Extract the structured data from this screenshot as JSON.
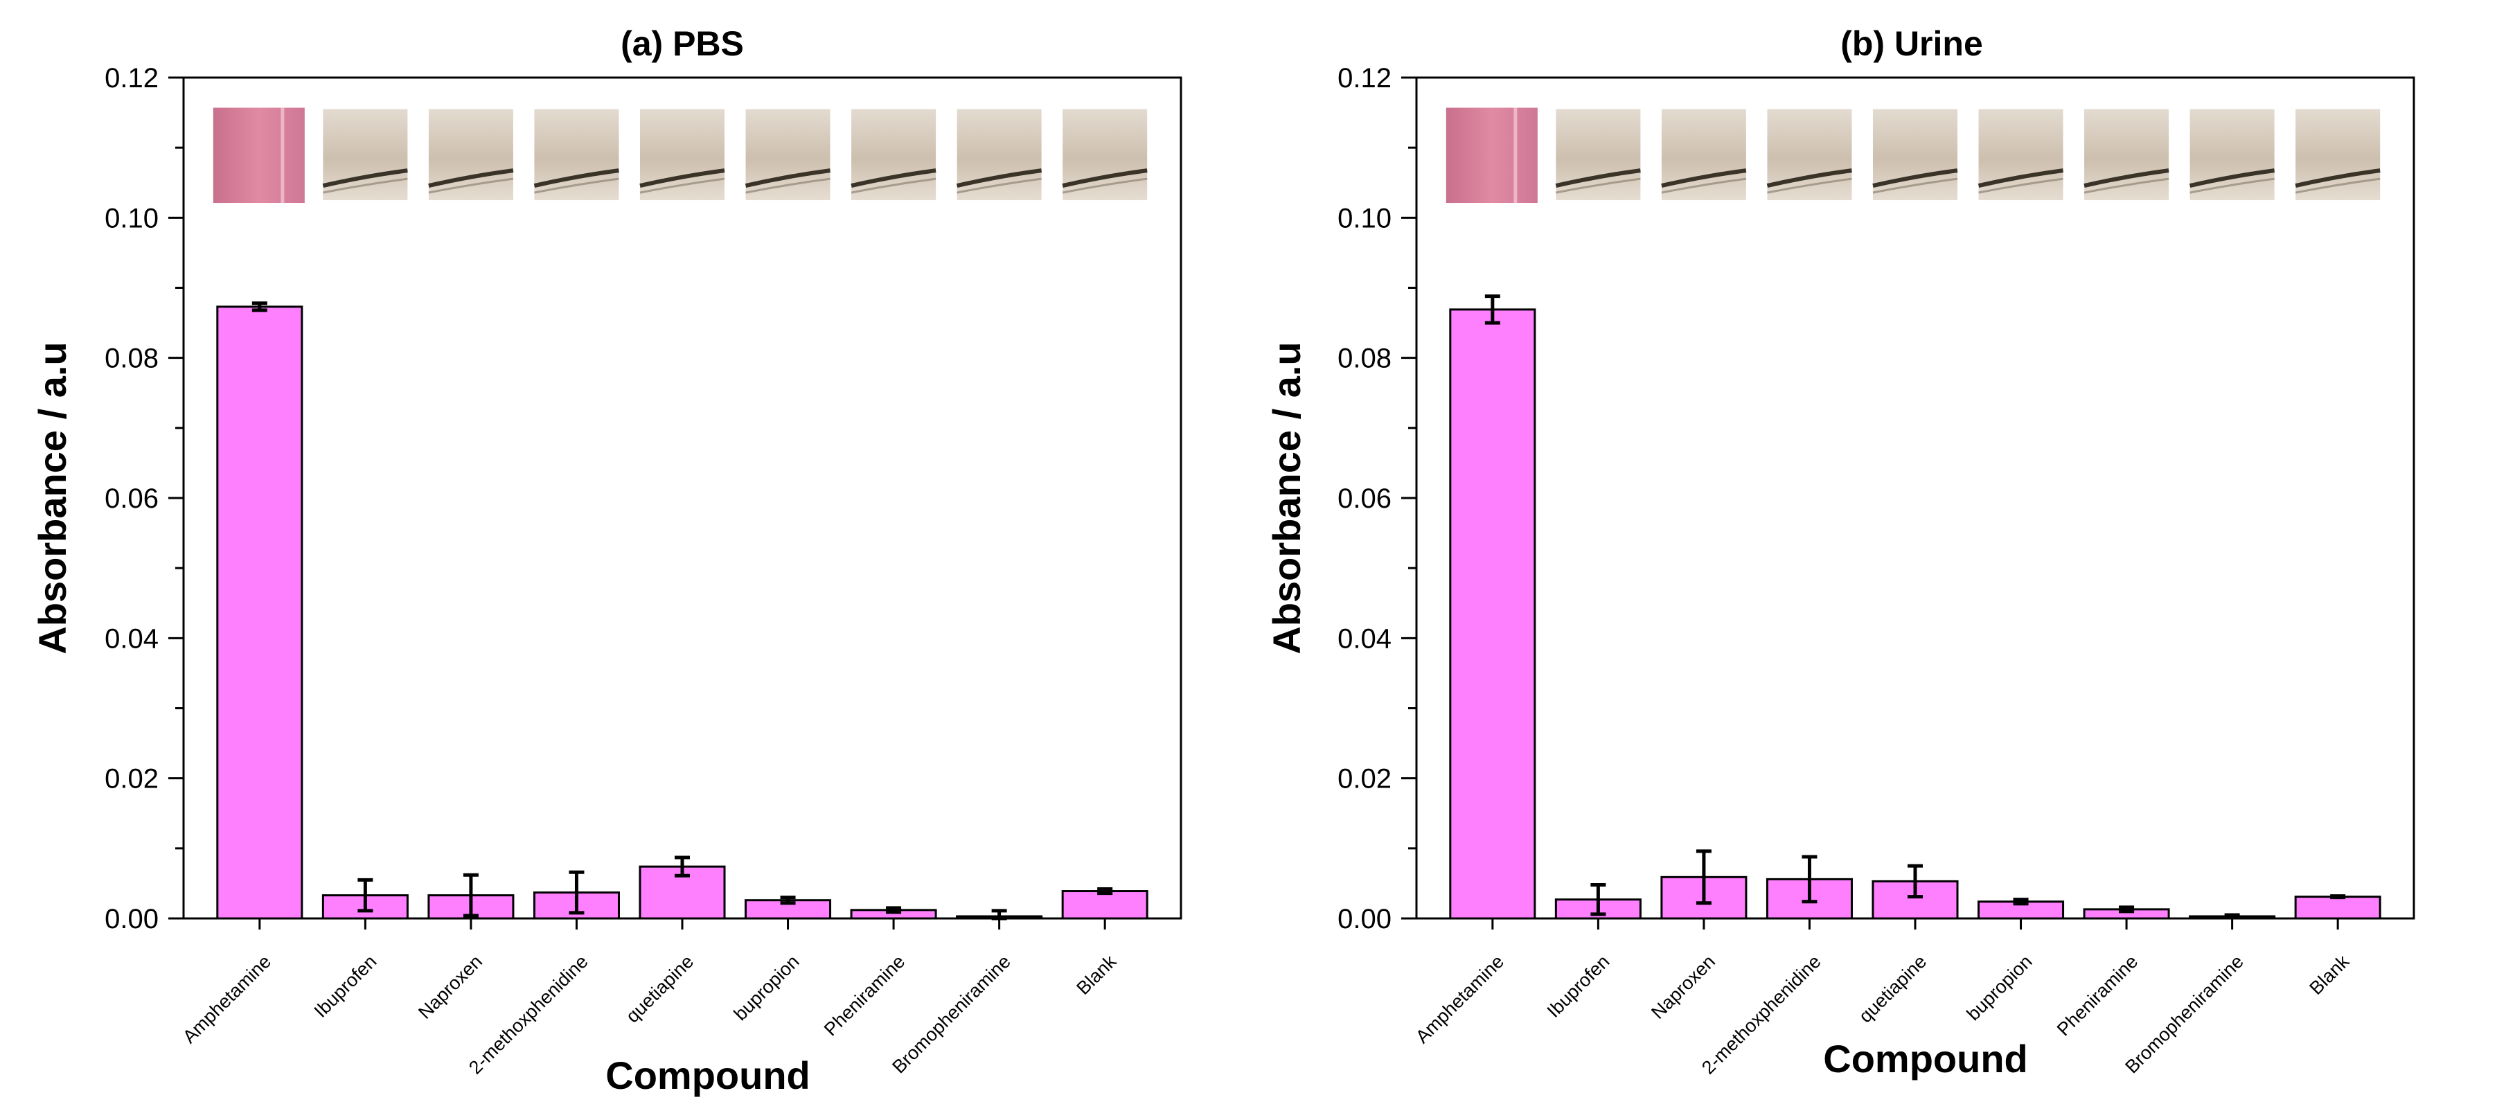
{
  "colors": {
    "bar_fill": "#ff80ff",
    "swatch_positive": "#d47a96",
    "swatch_negative": "#d8cfc3",
    "swatch_line": "#3a3328"
  },
  "chart_data": [
    {
      "type": "bar",
      "title": "(a) PBS",
      "xlabel": "Compound",
      "ylabel": "Absorbance / a.u",
      "ylim": [
        0,
        0.12
      ],
      "yticks": [
        "0.00",
        "0.02",
        "0.04",
        "0.06",
        "0.08",
        "0.10",
        "0.12"
      ],
      "categories": [
        "Amphetamine",
        "Ibuprofen",
        "Naproxen",
        "2-methoxphenidine",
        "quetiapine",
        "bupropion",
        "Pheniramine",
        "Bromopheniramine",
        "Blank"
      ],
      "values": [
        0.0873,
        0.0033,
        0.0033,
        0.0037,
        0.0074,
        0.0026,
        0.0012,
        0.0003,
        0.0039
      ],
      "errors": [
        0.0005,
        0.0022,
        0.0029,
        0.0029,
        0.0013,
        0.0004,
        0.0003,
        0.0008,
        0.0003
      ],
      "swatches": [
        "positive",
        "negative",
        "negative",
        "negative",
        "negative",
        "negative",
        "negative",
        "negative",
        "negative"
      ]
    },
    {
      "type": "bar",
      "title": "(b) Urine",
      "xlabel": "Compound",
      "ylabel": "Absorbance / a.u",
      "ylim": [
        0,
        0.12
      ],
      "yticks": [
        "0.00",
        "0.02",
        "0.04",
        "0.06",
        "0.08",
        "0.10",
        "0.12"
      ],
      "categories": [
        "Amphetamine",
        "Ibuprofen",
        "Naproxen",
        "2-methoxphenidine",
        "quetiapine",
        "bupropion",
        "Pheniramine",
        "Bromopheniramine",
        "Blank"
      ],
      "values": [
        0.0869,
        0.0027,
        0.0059,
        0.0056,
        0.0053,
        0.0024,
        0.0013,
        0.0003,
        0.0031
      ],
      "errors": [
        0.0019,
        0.0021,
        0.0037,
        0.0032,
        0.0022,
        0.0003,
        0.0003,
        0.0002,
        0.0001
      ],
      "swatches": [
        "positive",
        "negative",
        "negative",
        "negative",
        "negative",
        "negative",
        "negative",
        "negative",
        "negative"
      ]
    }
  ]
}
